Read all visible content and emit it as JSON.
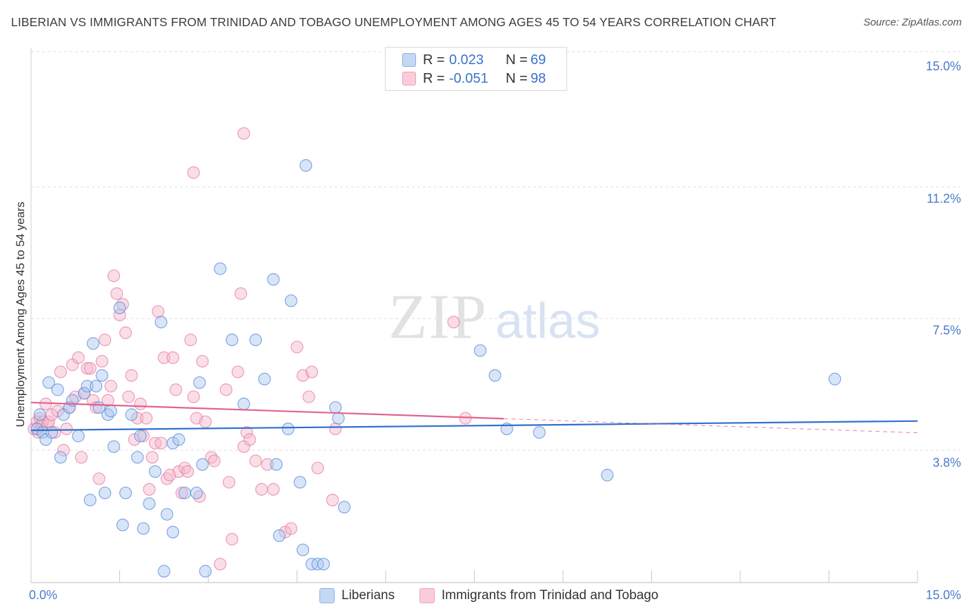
{
  "title": "LIBERIAN VS IMMIGRANTS FROM TRINIDAD AND TOBAGO UNEMPLOYMENT AMONG AGES 45 TO 54 YEARS CORRELATION CHART",
  "source": "Source: ZipAtlas.com",
  "watermark": {
    "zip": "ZIP",
    "atlas": "atlas"
  },
  "colors": {
    "blue_fill": "#a9c6ef",
    "blue_stroke": "#5b8fd8",
    "blue_line": "#2f6fcc",
    "pink_fill": "#f5b5c9",
    "pink_stroke": "#e97fa1",
    "pink_line": "#e0628f",
    "tick_text": "#4a7cc9",
    "grid": "#dddddd"
  },
  "legend": {
    "rows": [
      {
        "r_label": "R =",
        "r_value": "0.023",
        "n_label": "N =",
        "n_value": "69",
        "color": "blue"
      },
      {
        "r_label": "R =",
        "r_value": "-0.051",
        "n_label": "N =",
        "n_value": "98",
        "color": "pink"
      }
    ]
  },
  "bottom_legend": [
    "Liberians",
    "Immigrants from Trinidad and Tobago"
  ],
  "chart_data": {
    "type": "scatter",
    "title": "LIBERIAN VS IMMIGRANTS FROM TRINIDAD AND TOBAGO UNEMPLOYMENT AMONG AGES 45 TO 54 YEARS CORRELATION CHART",
    "xlabel": "",
    "ylabel": "Unemployment Among Ages 45 to 54 years",
    "xlim": [
      0,
      15
    ],
    "ylim": [
      0,
      15.5
    ],
    "x_tick_labels": [
      "0.0%",
      "15.0%"
    ],
    "y_ticks": [
      3.8,
      7.5,
      11.2,
      15.0
    ],
    "y_tick_labels": [
      "3.8%",
      "7.5%",
      "11.2%",
      "15.0%"
    ],
    "grid": true,
    "legend_position": "top-center",
    "series": [
      {
        "name": "Liberians",
        "color": "blue",
        "trend": {
          "x": [
            0,
            15
          ],
          "y": [
            4.36,
            4.62
          ],
          "dashed_from": null
        },
        "points": [
          [
            0.1,
            4.4
          ],
          [
            0.15,
            4.8
          ],
          [
            0.2,
            4.3
          ],
          [
            0.25,
            4.1
          ],
          [
            0.3,
            5.7
          ],
          [
            0.35,
            4.3
          ],
          [
            0.45,
            5.5
          ],
          [
            0.5,
            3.6
          ],
          [
            0.55,
            4.8
          ],
          [
            0.65,
            5.0
          ],
          [
            0.7,
            5.2
          ],
          [
            0.8,
            4.2
          ],
          [
            0.9,
            5.4
          ],
          [
            0.95,
            5.6
          ],
          [
            1.0,
            2.4
          ],
          [
            1.05,
            6.8
          ],
          [
            1.1,
            5.6
          ],
          [
            1.15,
            5.0
          ],
          [
            1.2,
            5.9
          ],
          [
            1.25,
            2.6
          ],
          [
            1.3,
            4.8
          ],
          [
            1.35,
            4.9
          ],
          [
            1.4,
            3.9
          ],
          [
            1.5,
            7.8
          ],
          [
            1.55,
            1.7
          ],
          [
            1.6,
            2.6
          ],
          [
            1.7,
            4.8
          ],
          [
            1.8,
            3.6
          ],
          [
            1.85,
            4.2
          ],
          [
            1.9,
            1.6
          ],
          [
            2.0,
            2.3
          ],
          [
            2.1,
            3.2
          ],
          [
            2.2,
            7.4
          ],
          [
            2.25,
            0.4
          ],
          [
            2.3,
            2.0
          ],
          [
            2.4,
            1.5
          ],
          [
            2.4,
            4.0
          ],
          [
            2.5,
            4.1
          ],
          [
            2.6,
            2.6
          ],
          [
            2.8,
            2.6
          ],
          [
            2.85,
            5.7
          ],
          [
            2.9,
            3.4
          ],
          [
            2.95,
            0.4
          ],
          [
            3.2,
            8.9
          ],
          [
            3.4,
            6.9
          ],
          [
            3.6,
            5.1
          ],
          [
            3.8,
            6.9
          ],
          [
            3.95,
            5.8
          ],
          [
            4.1,
            8.6
          ],
          [
            4.15,
            3.4
          ],
          [
            4.2,
            1.4
          ],
          [
            4.35,
            4.4
          ],
          [
            4.4,
            8.0
          ],
          [
            4.55,
            2.9
          ],
          [
            4.6,
            1.0
          ],
          [
            4.75,
            0.6
          ],
          [
            4.85,
            0.6
          ],
          [
            4.95,
            0.6
          ],
          [
            5.15,
            5.0
          ],
          [
            5.2,
            4.7
          ],
          [
            5.3,
            2.2
          ],
          [
            4.65,
            11.8
          ],
          [
            7.6,
            6.6
          ],
          [
            7.85,
            5.9
          ],
          [
            8.05,
            4.4
          ],
          [
            8.6,
            4.3
          ],
          [
            9.75,
            3.1
          ],
          [
            13.6,
            5.8
          ]
        ]
      },
      {
        "name": "Immigrants from Trinidad and Tobago",
        "color": "pink",
        "trend": {
          "x": [
            0,
            15
          ],
          "y": [
            5.14,
            4.29
          ],
          "dashed_from": 8.0
        },
        "points": [
          [
            0.05,
            4.4
          ],
          [
            0.1,
            4.6
          ],
          [
            0.12,
            4.3
          ],
          [
            0.15,
            4.7
          ],
          [
            0.18,
            4.5
          ],
          [
            0.2,
            4.6
          ],
          [
            0.25,
            5.1
          ],
          [
            0.28,
            4.5
          ],
          [
            0.3,
            4.6
          ],
          [
            0.35,
            4.8
          ],
          [
            0.4,
            4.3
          ],
          [
            0.45,
            4.9
          ],
          [
            0.5,
            6.0
          ],
          [
            0.55,
            3.8
          ],
          [
            0.6,
            4.4
          ],
          [
            0.65,
            5.0
          ],
          [
            0.7,
            6.2
          ],
          [
            0.75,
            5.3
          ],
          [
            0.8,
            6.4
          ],
          [
            0.85,
            3.6
          ],
          [
            0.9,
            5.4
          ],
          [
            0.95,
            6.1
          ],
          [
            1.0,
            6.1
          ],
          [
            1.05,
            5.2
          ],
          [
            1.1,
            5.0
          ],
          [
            1.15,
            3.0
          ],
          [
            1.2,
            6.3
          ],
          [
            1.25,
            6.9
          ],
          [
            1.3,
            5.2
          ],
          [
            1.35,
            5.6
          ],
          [
            1.4,
            8.7
          ],
          [
            1.45,
            8.2
          ],
          [
            1.5,
            7.6
          ],
          [
            1.55,
            7.9
          ],
          [
            1.6,
            7.1
          ],
          [
            1.65,
            5.3
          ],
          [
            1.7,
            5.9
          ],
          [
            1.75,
            4.1
          ],
          [
            1.8,
            4.7
          ],
          [
            1.85,
            5.1
          ],
          [
            1.9,
            4.2
          ],
          [
            1.95,
            4.7
          ],
          [
            2.0,
            2.7
          ],
          [
            2.05,
            3.6
          ],
          [
            2.1,
            4.0
          ],
          [
            2.15,
            7.7
          ],
          [
            2.2,
            4.0
          ],
          [
            2.25,
            6.4
          ],
          [
            2.3,
            3.0
          ],
          [
            2.35,
            3.1
          ],
          [
            2.4,
            6.4
          ],
          [
            2.45,
            5.5
          ],
          [
            2.5,
            3.2
          ],
          [
            2.55,
            2.6
          ],
          [
            2.6,
            3.3
          ],
          [
            2.65,
            3.2
          ],
          [
            2.7,
            6.9
          ],
          [
            2.75,
            5.3
          ],
          [
            2.8,
            4.7
          ],
          [
            2.85,
            2.5
          ],
          [
            2.9,
            6.3
          ],
          [
            2.95,
            4.6
          ],
          [
            3.05,
            3.6
          ],
          [
            3.1,
            3.5
          ],
          [
            3.2,
            0.6
          ],
          [
            3.3,
            5.5
          ],
          [
            3.35,
            2.9
          ],
          [
            3.4,
            1.3
          ],
          [
            3.5,
            6.0
          ],
          [
            3.55,
            8.2
          ],
          [
            3.6,
            3.9
          ],
          [
            3.65,
            4.3
          ],
          [
            3.7,
            4.1
          ],
          [
            3.8,
            3.5
          ],
          [
            3.9,
            2.7
          ],
          [
            4.0,
            3.4
          ],
          [
            4.1,
            2.7
          ],
          [
            4.3,
            1.5
          ],
          [
            4.4,
            1.6
          ],
          [
            4.5,
            6.7
          ],
          [
            4.6,
            5.9
          ],
          [
            4.7,
            5.3
          ],
          [
            4.75,
            6.0
          ],
          [
            4.85,
            3.3
          ],
          [
            5.1,
            2.4
          ],
          [
            5.15,
            4.4
          ],
          [
            7.15,
            7.4
          ],
          [
            7.35,
            4.7
          ],
          [
            2.75,
            11.6
          ],
          [
            3.6,
            12.7
          ]
        ]
      }
    ]
  }
}
